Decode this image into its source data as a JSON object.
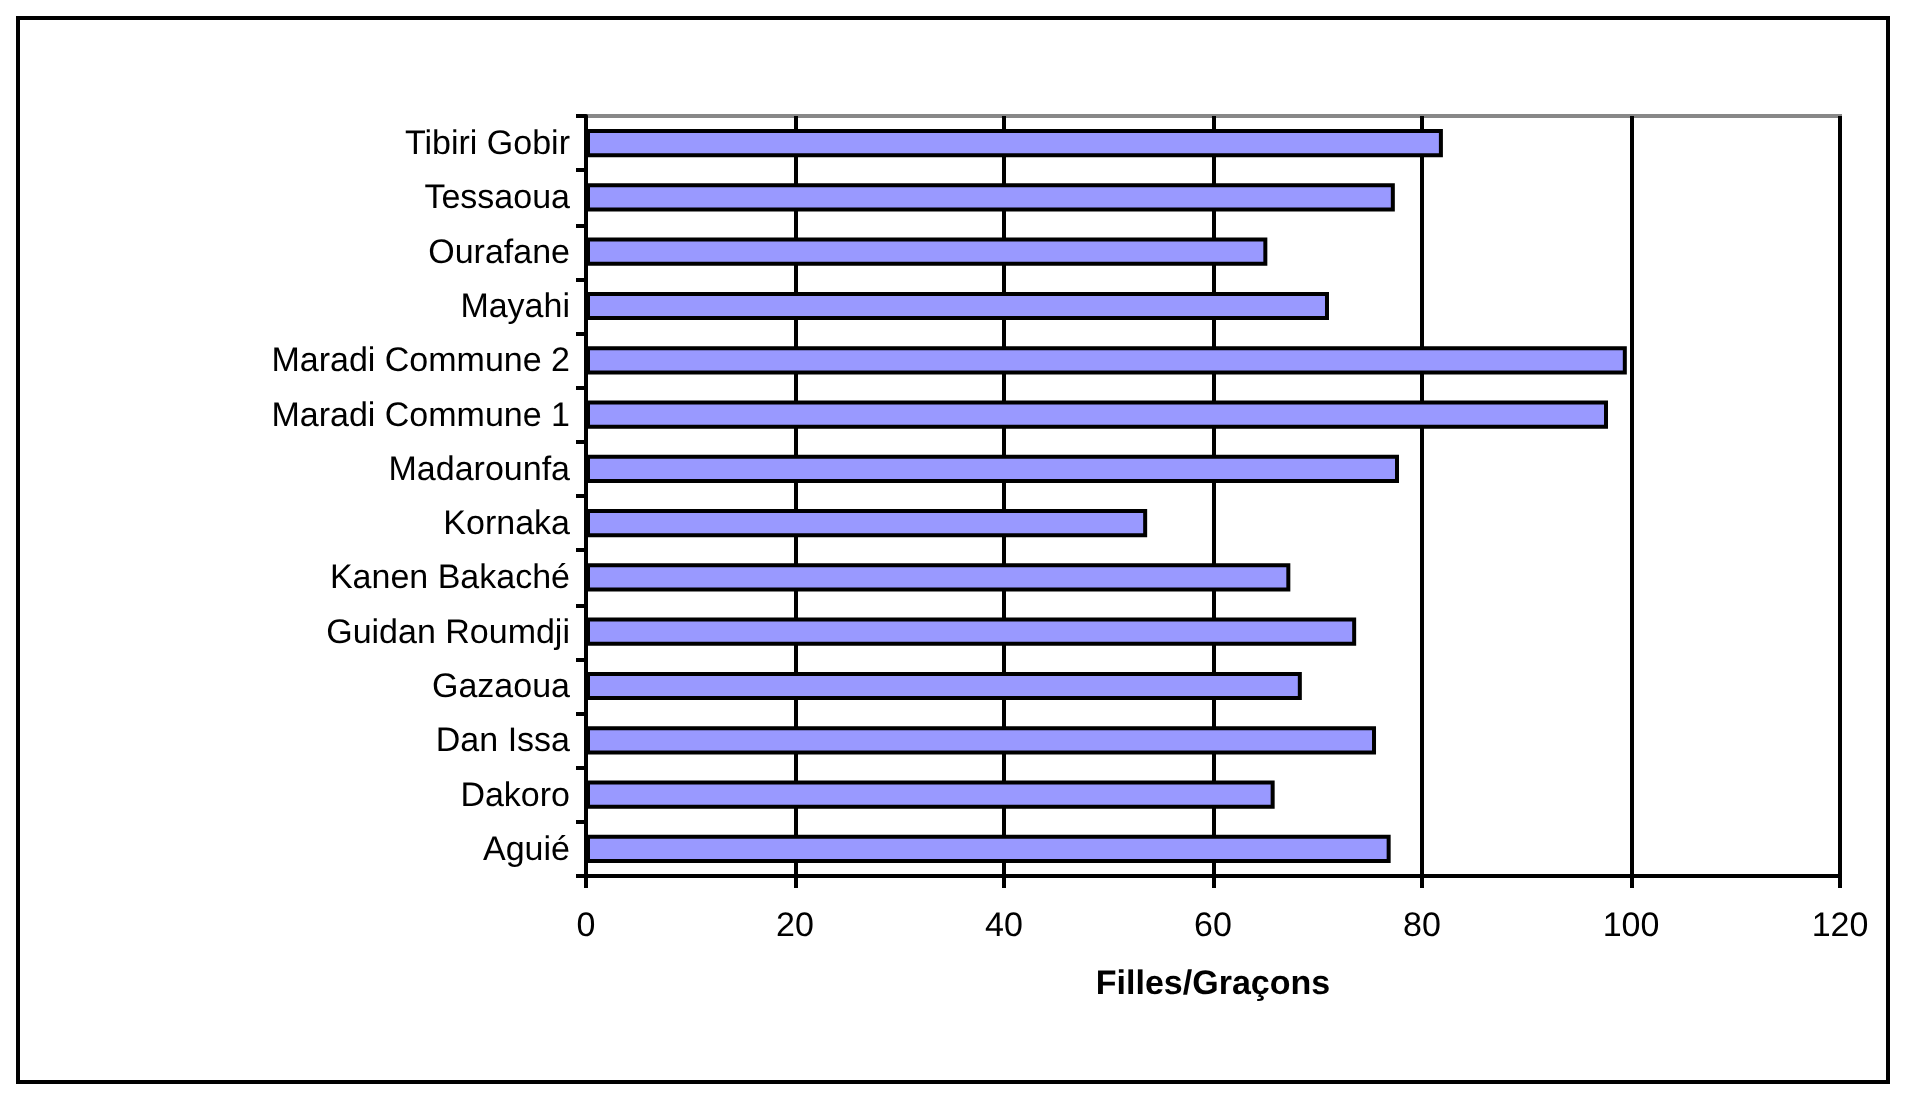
{
  "chart_data": {
    "type": "bar",
    "orientation": "horizontal",
    "xlabel": "Filles/Graçons",
    "categories": [
      "Tibiri Gobir",
      "Tessaoua",
      "Ourafane",
      "Mayahi",
      "Maradi Commune 2",
      "Maradi Commune 1",
      "Madarounfa",
      "Kornaka",
      "Kanen Bakaché",
      "Guidan Roumdji",
      "Gazaoua",
      "Dan Issa",
      "Dakoro",
      "Aguié"
    ],
    "values": [
      82,
      77.4,
      65.2,
      71.1,
      99.6,
      97.8,
      77.8,
      53.7,
      67.4,
      73.7,
      68.5,
      75.6,
      65.9,
      77
    ],
    "color": "#9999ff",
    "xlim": [
      0,
      120
    ],
    "xticks": [
      0,
      20,
      40,
      60,
      80,
      100,
      120
    ],
    "grid": "x"
  }
}
